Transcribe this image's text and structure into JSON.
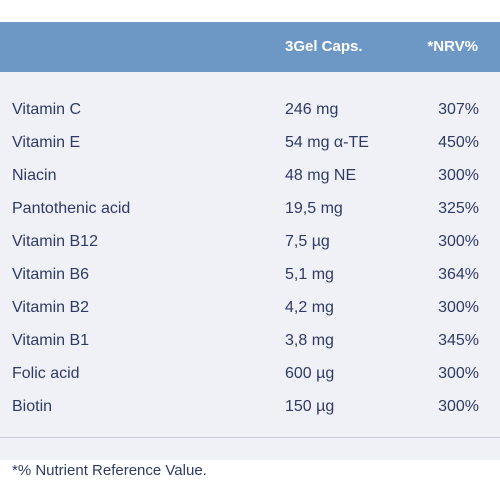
{
  "table": {
    "header": {
      "amount_label": "3Gel Caps.",
      "nrv_label": "*NRV%"
    },
    "rows": [
      {
        "name": "Vitamin C",
        "amount": "246 mg",
        "nrv": "307%"
      },
      {
        "name": "Vitamin E",
        "amount": "54 mg  α-TE",
        "nrv": "450%"
      },
      {
        "name": "Niacin",
        "amount": "48 mg  NE",
        "nrv": "300%"
      },
      {
        "name": "Pantothenic acid",
        "amount": "19,5 mg",
        "nrv": "325%"
      },
      {
        "name": "Vitamin B12",
        "amount": "7,5 µg",
        "nrv": "300%"
      },
      {
        "name": "Vitamin B6",
        "amount": "5,1 mg",
        "nrv": "364%"
      },
      {
        "name": "Vitamin B2",
        "amount": "4,2 mg",
        "nrv": "300%"
      },
      {
        "name": "Vitamin B1",
        "amount": "3,8 mg",
        "nrv": "345%"
      },
      {
        "name": "Folic acid",
        "amount": "600 µg",
        "nrv": "300%"
      },
      {
        "name": "Biotin",
        "amount": "150 µg",
        "nrv": "300%"
      }
    ],
    "footnote": "*% Nutrient Reference Value."
  },
  "colors": {
    "header_bg": "#6d98c6",
    "panel_bg": "#f0f1f6",
    "text": "#2f3b66"
  }
}
